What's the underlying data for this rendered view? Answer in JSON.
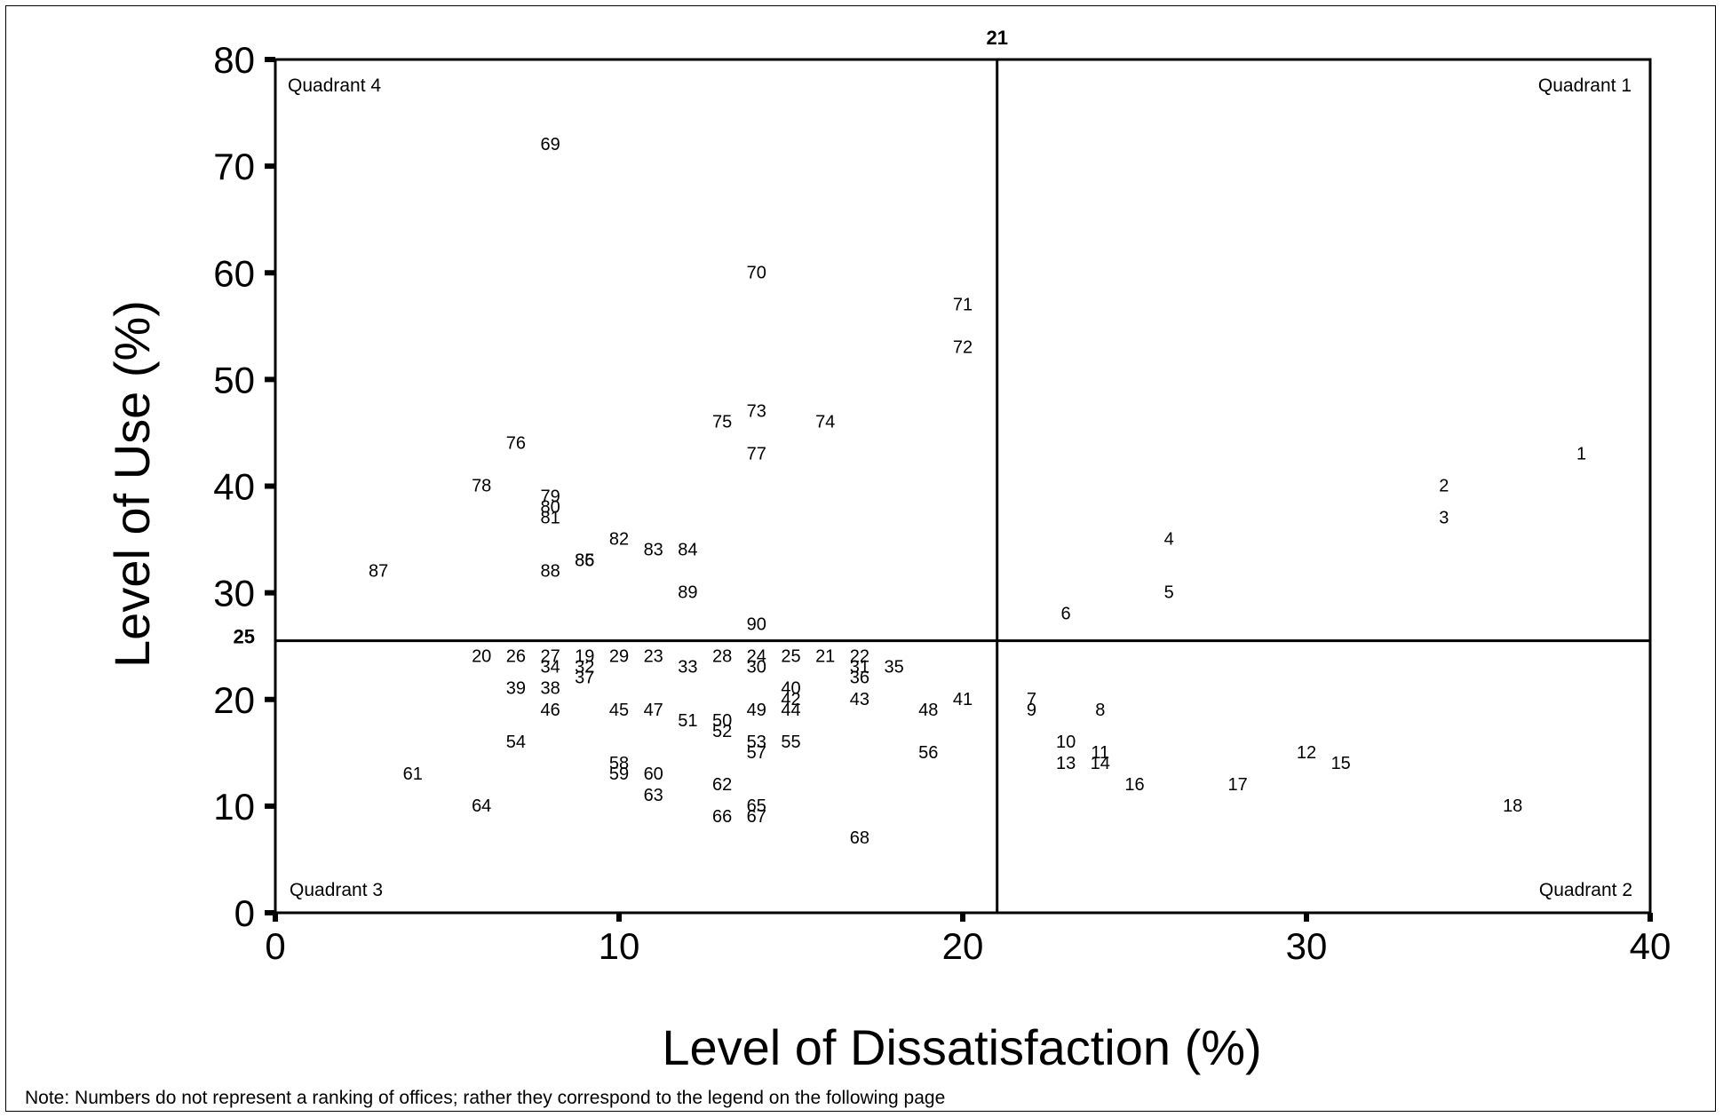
{
  "note": "Note:  Numbers do not represent a ranking of offices; rather they correspond to the legend on the following page",
  "chart_data": {
    "type": "scatter",
    "title": "",
    "xlabel": "Level of Dissatisfaction (%)",
    "ylabel": "Level of Use (%)",
    "xlim": [
      0,
      40
    ],
    "ylim": [
      0,
      80
    ],
    "xticks": [
      0,
      10,
      20,
      30,
      40
    ],
    "yticks": [
      0,
      10,
      20,
      30,
      40,
      50,
      60,
      70,
      80
    ],
    "grid": false,
    "reference_lines": {
      "x": 21,
      "x_label": "21",
      "y": 25.5,
      "y_label": "25"
    },
    "quadrant_labels": {
      "q1": "Quadrant 1",
      "q2": "Quadrant 2",
      "q3": "Quadrant 3",
      "q4": "Quadrant 4"
    },
    "points": [
      {
        "label": "1",
        "x": 38,
        "y": 43
      },
      {
        "label": "2",
        "x": 34,
        "y": 40
      },
      {
        "label": "3",
        "x": 34,
        "y": 37
      },
      {
        "label": "4",
        "x": 26,
        "y": 35
      },
      {
        "label": "5",
        "x": 26,
        "y": 30
      },
      {
        "label": "6",
        "x": 23,
        "y": 28
      },
      {
        "label": "7",
        "x": 22,
        "y": 20
      },
      {
        "label": "8",
        "x": 24,
        "y": 19
      },
      {
        "label": "9",
        "x": 22,
        "y": 19
      },
      {
        "label": "10",
        "x": 23,
        "y": 16
      },
      {
        "label": "11",
        "x": 24,
        "y": 15
      },
      {
        "label": "12",
        "x": 30,
        "y": 15
      },
      {
        "label": "13",
        "x": 23,
        "y": 14
      },
      {
        "label": "14",
        "x": 24,
        "y": 14
      },
      {
        "label": "15",
        "x": 31,
        "y": 14
      },
      {
        "label": "16",
        "x": 25,
        "y": 12
      },
      {
        "label": "17",
        "x": 28,
        "y": 12
      },
      {
        "label": "18",
        "x": 36,
        "y": 10
      },
      {
        "label": "19",
        "x": 9,
        "y": 24
      },
      {
        "label": "20",
        "x": 6,
        "y": 24
      },
      {
        "label": "21",
        "x": 16,
        "y": 24
      },
      {
        "label": "22",
        "x": 17,
        "y": 24
      },
      {
        "label": "23",
        "x": 11,
        "y": 24
      },
      {
        "label": "24",
        "x": 14,
        "y": 24
      },
      {
        "label": "25",
        "x": 15,
        "y": 24
      },
      {
        "label": "26",
        "x": 7,
        "y": 24
      },
      {
        "label": "27",
        "x": 8,
        "y": 24
      },
      {
        "label": "28",
        "x": 13,
        "y": 24
      },
      {
        "label": "29",
        "x": 10,
        "y": 24
      },
      {
        "label": "30",
        "x": 14,
        "y": 23
      },
      {
        "label": "31",
        "x": 17,
        "y": 23
      },
      {
        "label": "32",
        "x": 9,
        "y": 23
      },
      {
        "label": "33",
        "x": 12,
        "y": 23
      },
      {
        "label": "34",
        "x": 8,
        "y": 23
      },
      {
        "label": "35",
        "x": 18,
        "y": 23
      },
      {
        "label": "36",
        "x": 17,
        "y": 22
      },
      {
        "label": "37",
        "x": 9,
        "y": 22
      },
      {
        "label": "38",
        "x": 8,
        "y": 21
      },
      {
        "label": "39",
        "x": 7,
        "y": 21
      },
      {
        "label": "40",
        "x": 15,
        "y": 21
      },
      {
        "label": "41",
        "x": 20,
        "y": 20
      },
      {
        "label": "42",
        "x": 15,
        "y": 20
      },
      {
        "label": "43",
        "x": 17,
        "y": 20
      },
      {
        "label": "44",
        "x": 15,
        "y": 19
      },
      {
        "label": "45",
        "x": 10,
        "y": 19
      },
      {
        "label": "46",
        "x": 8,
        "y": 19
      },
      {
        "label": "47",
        "x": 11,
        "y": 19
      },
      {
        "label": "48",
        "x": 19,
        "y": 19
      },
      {
        "label": "49",
        "x": 14,
        "y": 19
      },
      {
        "label": "50",
        "x": 13,
        "y": 18
      },
      {
        "label": "51",
        "x": 12,
        "y": 18
      },
      {
        "label": "52",
        "x": 13,
        "y": 17
      },
      {
        "label": "53",
        "x": 14,
        "y": 16
      },
      {
        "label": "54",
        "x": 7,
        "y": 16
      },
      {
        "label": "55",
        "x": 15,
        "y": 16
      },
      {
        "label": "56",
        "x": 19,
        "y": 15
      },
      {
        "label": "57",
        "x": 14,
        "y": 15
      },
      {
        "label": "58",
        "x": 10,
        "y": 14
      },
      {
        "label": "59",
        "x": 10,
        "y": 13
      },
      {
        "label": "60",
        "x": 11,
        "y": 13
      },
      {
        "label": "61",
        "x": 4,
        "y": 13
      },
      {
        "label": "62",
        "x": 13,
        "y": 12
      },
      {
        "label": "63",
        "x": 11,
        "y": 11
      },
      {
        "label": "64",
        "x": 6,
        "y": 10
      },
      {
        "label": "65",
        "x": 14,
        "y": 10
      },
      {
        "label": "66",
        "x": 13,
        "y": 9
      },
      {
        "label": "67",
        "x": 14,
        "y": 9
      },
      {
        "label": "68",
        "x": 17,
        "y": 7
      },
      {
        "label": "69",
        "x": 8,
        "y": 72
      },
      {
        "label": "70",
        "x": 14,
        "y": 60
      },
      {
        "label": "71",
        "x": 20,
        "y": 57
      },
      {
        "label": "72",
        "x": 20,
        "y": 53
      },
      {
        "label": "73",
        "x": 14,
        "y": 47
      },
      {
        "label": "74",
        "x": 16,
        "y": 46
      },
      {
        "label": "75",
        "x": 13,
        "y": 46
      },
      {
        "label": "76",
        "x": 7,
        "y": 44
      },
      {
        "label": "77",
        "x": 14,
        "y": 43
      },
      {
        "label": "78",
        "x": 6,
        "y": 40
      },
      {
        "label": "79",
        "x": 8,
        "y": 39
      },
      {
        "label": "80",
        "x": 8,
        "y": 38
      },
      {
        "label": "81",
        "x": 8,
        "y": 37
      },
      {
        "label": "82",
        "x": 10,
        "y": 35
      },
      {
        "label": "83",
        "x": 11,
        "y": 34
      },
      {
        "label": "84",
        "x": 12,
        "y": 34
      },
      {
        "label": "85",
        "x": 9,
        "y": 33
      },
      {
        "label": "86",
        "x": 9,
        "y": 33
      },
      {
        "label": "87",
        "x": 3,
        "y": 32
      },
      {
        "label": "88",
        "x": 8,
        "y": 32
      },
      {
        "label": "89",
        "x": 12,
        "y": 30
      },
      {
        "label": "90",
        "x": 14,
        "y": 27
      }
    ]
  }
}
